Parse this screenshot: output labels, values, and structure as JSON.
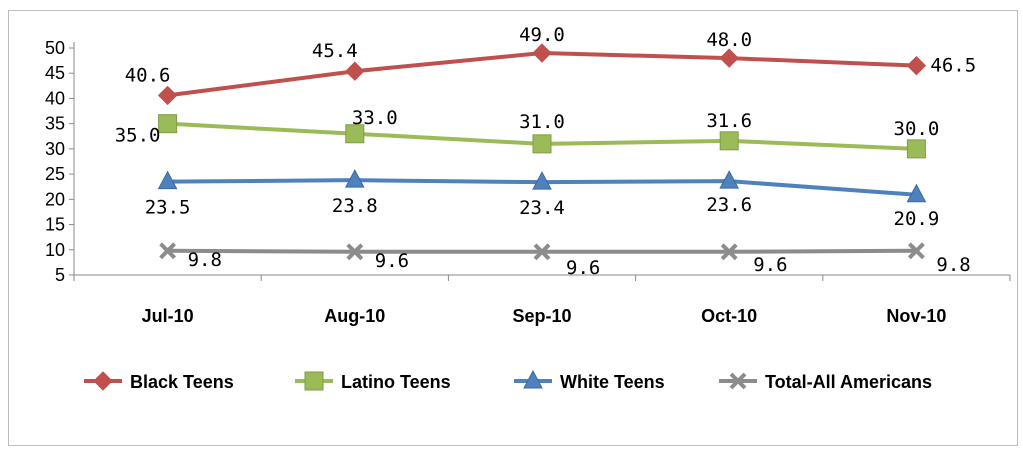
{
  "chart_data": {
    "type": "line",
    "title": "",
    "xlabel": "",
    "ylabel": "",
    "categories": [
      "Jul-10",
      "Aug-10",
      "Sep-10",
      "Oct-10",
      "Nov-10"
    ],
    "y_ticks": [
      "5",
      "10",
      "15",
      "20",
      "25",
      "30",
      "35",
      "40",
      "45",
      "50"
    ],
    "ylim": [
      5,
      50
    ],
    "grid": false,
    "legend_position": "bottom",
    "series": [
      {
        "name": "Black Teens",
        "values": [
          40.6,
          45.4,
          49.0,
          48.0,
          46.5
        ],
        "labels": [
          "40.6",
          "45.4",
          "49.0",
          "48.0",
          "46.5"
        ],
        "color": "#c0504d",
        "marker": "diamond"
      },
      {
        "name": "Latino Teens",
        "values": [
          35.0,
          33.0,
          31.0,
          31.6,
          30.0
        ],
        "labels": [
          "35.0",
          "33.0",
          "31.0",
          "31.6",
          "30.0"
        ],
        "color": "#9bbb59",
        "marker": "square"
      },
      {
        "name": "White Teens",
        "values": [
          23.5,
          23.8,
          23.4,
          23.6,
          20.9
        ],
        "labels": [
          "23.5",
          "23.8",
          "23.4",
          "23.6",
          "20.9"
        ],
        "color": "#4f81bd",
        "marker": "triangle"
      },
      {
        "name": "Total-All Americans",
        "values": [
          9.8,
          9.6,
          9.6,
          9.6,
          9.8
        ],
        "labels": [
          "9.8",
          "9.6",
          "9.6",
          "9.6",
          "9.8"
        ],
        "color": "#8c8c8c",
        "marker": "x"
      }
    ]
  }
}
